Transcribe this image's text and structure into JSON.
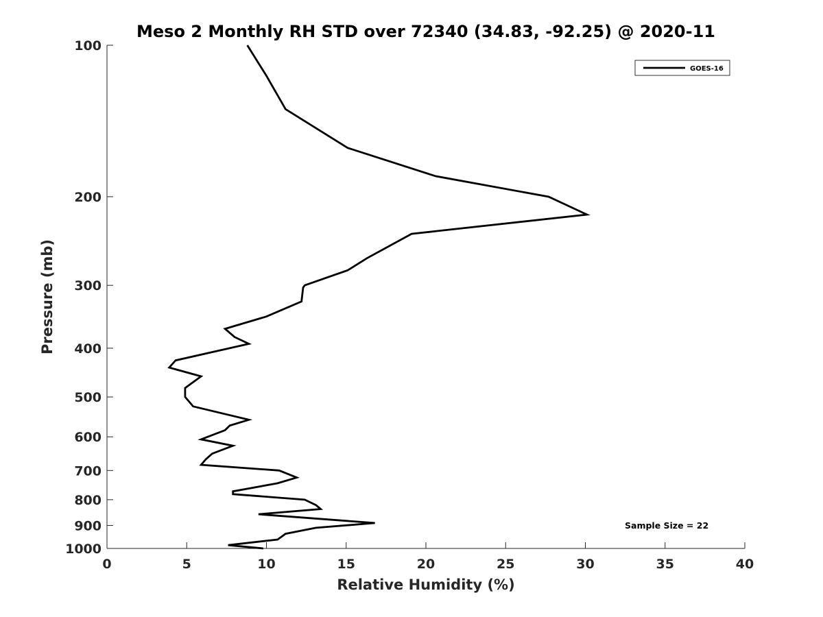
{
  "chart_data": {
    "type": "line",
    "title": "Meso 2 Monthly RH STD over 72340 (34.83, -92.25) @ 2020-11",
    "xlabel": "Relative Humidity (%)",
    "ylabel": "Pressure (mb)",
    "xlim": [
      0,
      40
    ],
    "ylim": [
      100,
      1000
    ],
    "yscale": "log",
    "yreversed": true,
    "xticks": [
      0,
      5,
      10,
      15,
      20,
      25,
      30,
      35,
      40
    ],
    "yticks": [
      100,
      200,
      300,
      400,
      500,
      600,
      700,
      800,
      900,
      1000
    ],
    "grid": false,
    "legend_position": "top-right",
    "series": [
      {
        "name": "GOES-16",
        "color": "#000000",
        "x": [
          8.8,
          10.0,
          11.2,
          15.1,
          20.6,
          27.7,
          30.1,
          19.1,
          16.3,
          15.1,
          12.4,
          12.3,
          12.2,
          10.0,
          7.4,
          8.0,
          8.9,
          4.3,
          3.9,
          5.9,
          4.9,
          4.9,
          5.4,
          8.9,
          7.7,
          7.4,
          5.9,
          7.9,
          6.6,
          6.2,
          5.9,
          10.8,
          11.9,
          10.7,
          7.9,
          7.9,
          12.4,
          13.1,
          13.4,
          9.5,
          16.8,
          13.1,
          11.2,
          10.7,
          7.6,
          9.8
        ],
        "y": [
          100,
          115,
          134,
          160,
          182,
          200,
          217,
          237,
          265,
          280,
          300,
          303,
          323,
          346,
          366,
          380,
          392,
          423,
          437,
          455,
          480,
          500,
          522,
          555,
          570,
          582,
          607,
          625,
          648,
          665,
          682,
          700,
          723,
          742,
          770,
          780,
          800,
          820,
          835,
          855,
          890,
          910,
          935,
          960,
          985,
          1000
        ]
      }
    ],
    "annotations": [
      "Sample Size = 22"
    ]
  }
}
